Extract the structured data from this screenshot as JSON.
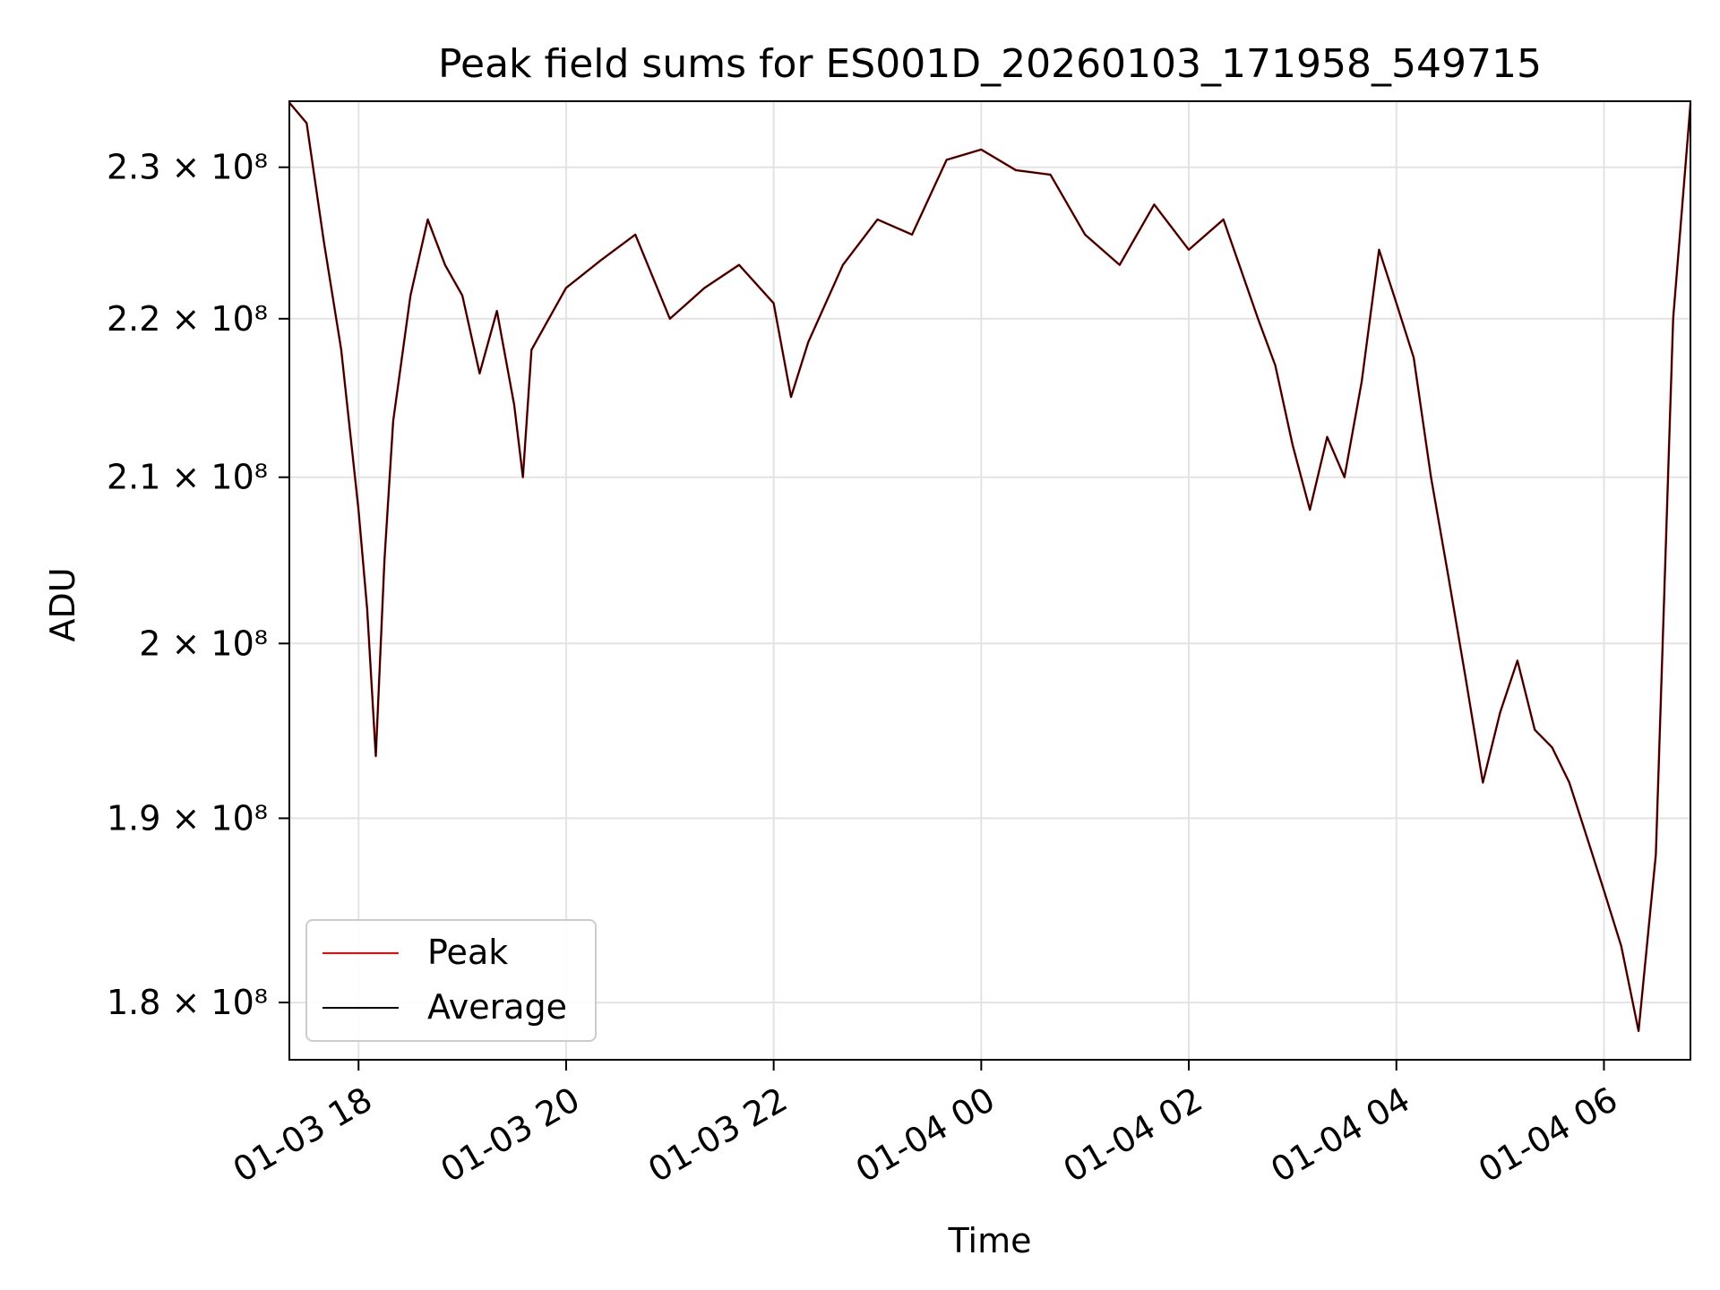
{
  "chart_data": {
    "type": "line",
    "title": "Peak field sums for ES001D_20260103_171958_549715",
    "xlabel": "Time",
    "ylabel": "ADU",
    "yscale": "log",
    "xlim": [
      "2026-01-03 17:20",
      "2026-01-04 06:50"
    ],
    "ylim": [
      177000000,
      234500000
    ],
    "grid": true,
    "legend_position": "lower-left",
    "x_ticks": [
      {
        "value": "2026-01-03 18:00",
        "label": "01-03 18"
      },
      {
        "value": "2026-01-03 20:00",
        "label": "01-03 20"
      },
      {
        "value": "2026-01-03 22:00",
        "label": "01-03 22"
      },
      {
        "value": "2026-01-04 00:00",
        "label": "01-04 00"
      },
      {
        "value": "2026-01-04 02:00",
        "label": "01-04 02"
      },
      {
        "value": "2026-01-04 04:00",
        "label": "01-04 04"
      },
      {
        "value": "2026-01-04 06:00",
        "label": "01-04 06"
      }
    ],
    "y_ticks": [
      {
        "value": 180000000,
        "label": "1.8 × 10⁸"
      },
      {
        "value": 190000000,
        "label": "1.9 × 10⁸"
      },
      {
        "value": 200000000,
        "label": "2 × 10⁸"
      },
      {
        "value": 210000000,
        "label": "2.1 × 10⁸"
      },
      {
        "value": 220000000,
        "label": "2.2 × 10⁸"
      },
      {
        "value": 230000000,
        "label": "2.3 × 10⁸"
      }
    ],
    "x": [
      "2026-01-03 17:20",
      "2026-01-03 17:30",
      "2026-01-03 17:40",
      "2026-01-03 17:50",
      "2026-01-03 18:00",
      "2026-01-03 18:05",
      "2026-01-03 18:10",
      "2026-01-03 18:15",
      "2026-01-03 18:20",
      "2026-01-03 18:30",
      "2026-01-03 18:40",
      "2026-01-03 18:50",
      "2026-01-03 19:00",
      "2026-01-03 19:10",
      "2026-01-03 19:20",
      "2026-01-03 19:30",
      "2026-01-03 19:35",
      "2026-01-03 19:40",
      "2026-01-03 20:00",
      "2026-01-03 20:20",
      "2026-01-03 20:40",
      "2026-01-03 21:00",
      "2026-01-03 21:20",
      "2026-01-03 21:40",
      "2026-01-03 22:00",
      "2026-01-03 22:10",
      "2026-01-03 22:20",
      "2026-01-03 22:40",
      "2026-01-03 23:00",
      "2026-01-03 23:20",
      "2026-01-03 23:40",
      "2026-01-04 00:00",
      "2026-01-04 00:20",
      "2026-01-04 00:40",
      "2026-01-04 01:00",
      "2026-01-04 01:20",
      "2026-01-04 01:40",
      "2026-01-04 02:00",
      "2026-01-04 02:20",
      "2026-01-04 02:40",
      "2026-01-04 02:50",
      "2026-01-04 03:00",
      "2026-01-04 03:10",
      "2026-01-04 03:20",
      "2026-01-04 03:30",
      "2026-01-04 03:40",
      "2026-01-04 03:50",
      "2026-01-04 04:00",
      "2026-01-04 04:10",
      "2026-01-04 04:20",
      "2026-01-04 04:30",
      "2026-01-04 04:40",
      "2026-01-04 04:50",
      "2026-01-04 05:00",
      "2026-01-04 05:10",
      "2026-01-04 05:20",
      "2026-01-04 05:30",
      "2026-01-04 05:40",
      "2026-01-04 05:50",
      "2026-01-04 06:00",
      "2026-01-04 06:10",
      "2026-01-04 06:20",
      "2026-01-04 06:30",
      "2026-01-04 06:40",
      "2026-01-04 06:50"
    ],
    "series": [
      {
        "name": "Peak",
        "color": "#ff0000",
        "values": [
          234400000,
          233000000,
          225000000,
          218000000,
          208000000,
          202000000,
          193500000,
          205000000,
          213500000,
          221500000,
          226500000,
          223500000,
          221500000,
          216500000,
          220500000,
          214500000,
          210000000,
          218000000,
          222000000,
          223800000,
          225500000,
          220000000,
          222000000,
          223500000,
          221000000,
          215000000,
          218500000,
          223500000,
          226500000,
          225500000,
          230500000,
          231200000,
          229800000,
          229500000,
          225500000,
          223500000,
          227500000,
          224500000,
          226500000,
          220000000,
          217000000,
          212000000,
          208000000,
          212500000,
          210000000,
          216000000,
          224500000,
          221000000,
          217500000,
          210000000,
          204000000,
          198000000,
          192000000,
          196000000,
          199000000,
          195000000,
          194000000,
          192000000,
          189000000,
          186000000,
          183000000,
          178500000,
          188000000,
          220000000,
          234300000
        ]
      },
      {
        "name": "Average",
        "color": "#000000",
        "values": [
          234400000,
          233000000,
          225000000,
          218000000,
          208000000,
          202000000,
          193500000,
          205000000,
          213500000,
          221500000,
          226500000,
          223500000,
          221500000,
          216500000,
          220500000,
          214500000,
          210000000,
          218000000,
          222000000,
          223800000,
          225500000,
          220000000,
          222000000,
          223500000,
          221000000,
          215000000,
          218500000,
          223500000,
          226500000,
          225500000,
          230500000,
          231200000,
          229800000,
          229500000,
          225500000,
          223500000,
          227500000,
          224500000,
          226500000,
          220000000,
          217000000,
          212000000,
          208000000,
          212500000,
          210000000,
          216000000,
          224500000,
          221000000,
          217500000,
          210000000,
          204000000,
          198000000,
          192000000,
          196000000,
          199000000,
          195000000,
          194000000,
          192000000,
          189000000,
          186000000,
          183000000,
          178500000,
          188000000,
          220000000,
          234300000
        ]
      }
    ]
  }
}
